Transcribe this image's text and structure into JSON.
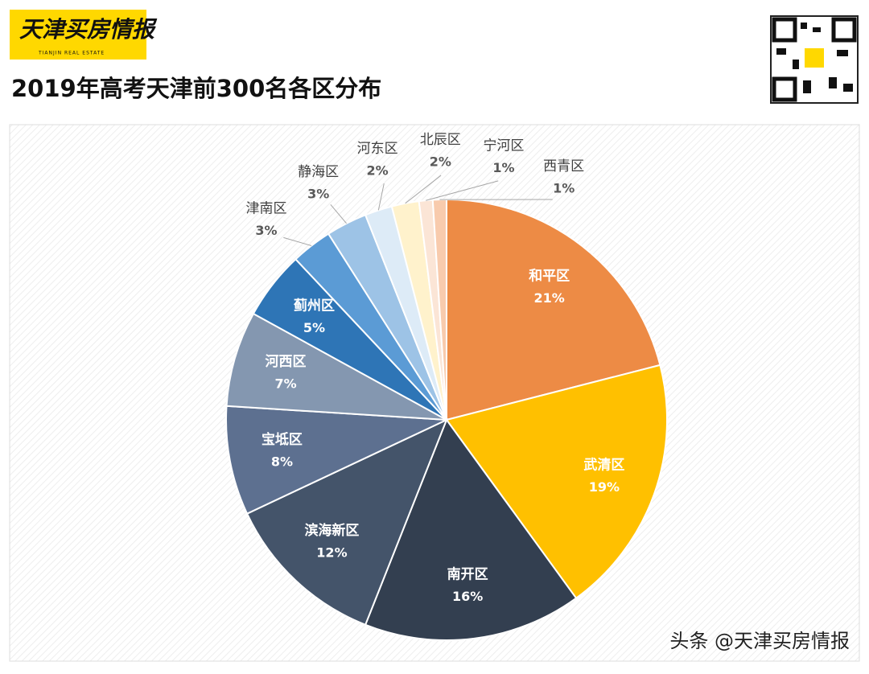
{
  "header": {
    "logo": "天津买房情报",
    "logo_sub": "TIANJIN REAL ESTATE"
  },
  "chart_data": {
    "type": "pie",
    "title": "2019年高考天津前300名各区分布",
    "categories": [
      "和平区",
      "武清区",
      "南开区",
      "滨海新区",
      "宝坻区",
      "河西区",
      "蓟州区",
      "津南区",
      "静海区",
      "河东区",
      "北辰区",
      "宁河区",
      "西青区"
    ],
    "values": [
      21,
      19,
      16,
      12,
      8,
      7,
      5,
      3,
      3,
      2,
      2,
      1,
      1
    ],
    "value_labels": [
      "21%",
      "19%",
      "16%",
      "12%",
      "8%",
      "7%",
      "5%",
      "3%",
      "3%",
      "2%",
      "2%",
      "1%",
      "1%"
    ],
    "colors": [
      "#ED8B45",
      "#FFC000",
      "#333F50",
      "#44546A",
      "#5D7090",
      "#8497B0",
      "#2E75B6",
      "#5B9BD5",
      "#9DC3E6",
      "#DDEBF7",
      "#FFF2CC",
      "#FBE5D6",
      "#F8CBAD"
    ]
  },
  "watermark": "头条 @天津买房情报"
}
